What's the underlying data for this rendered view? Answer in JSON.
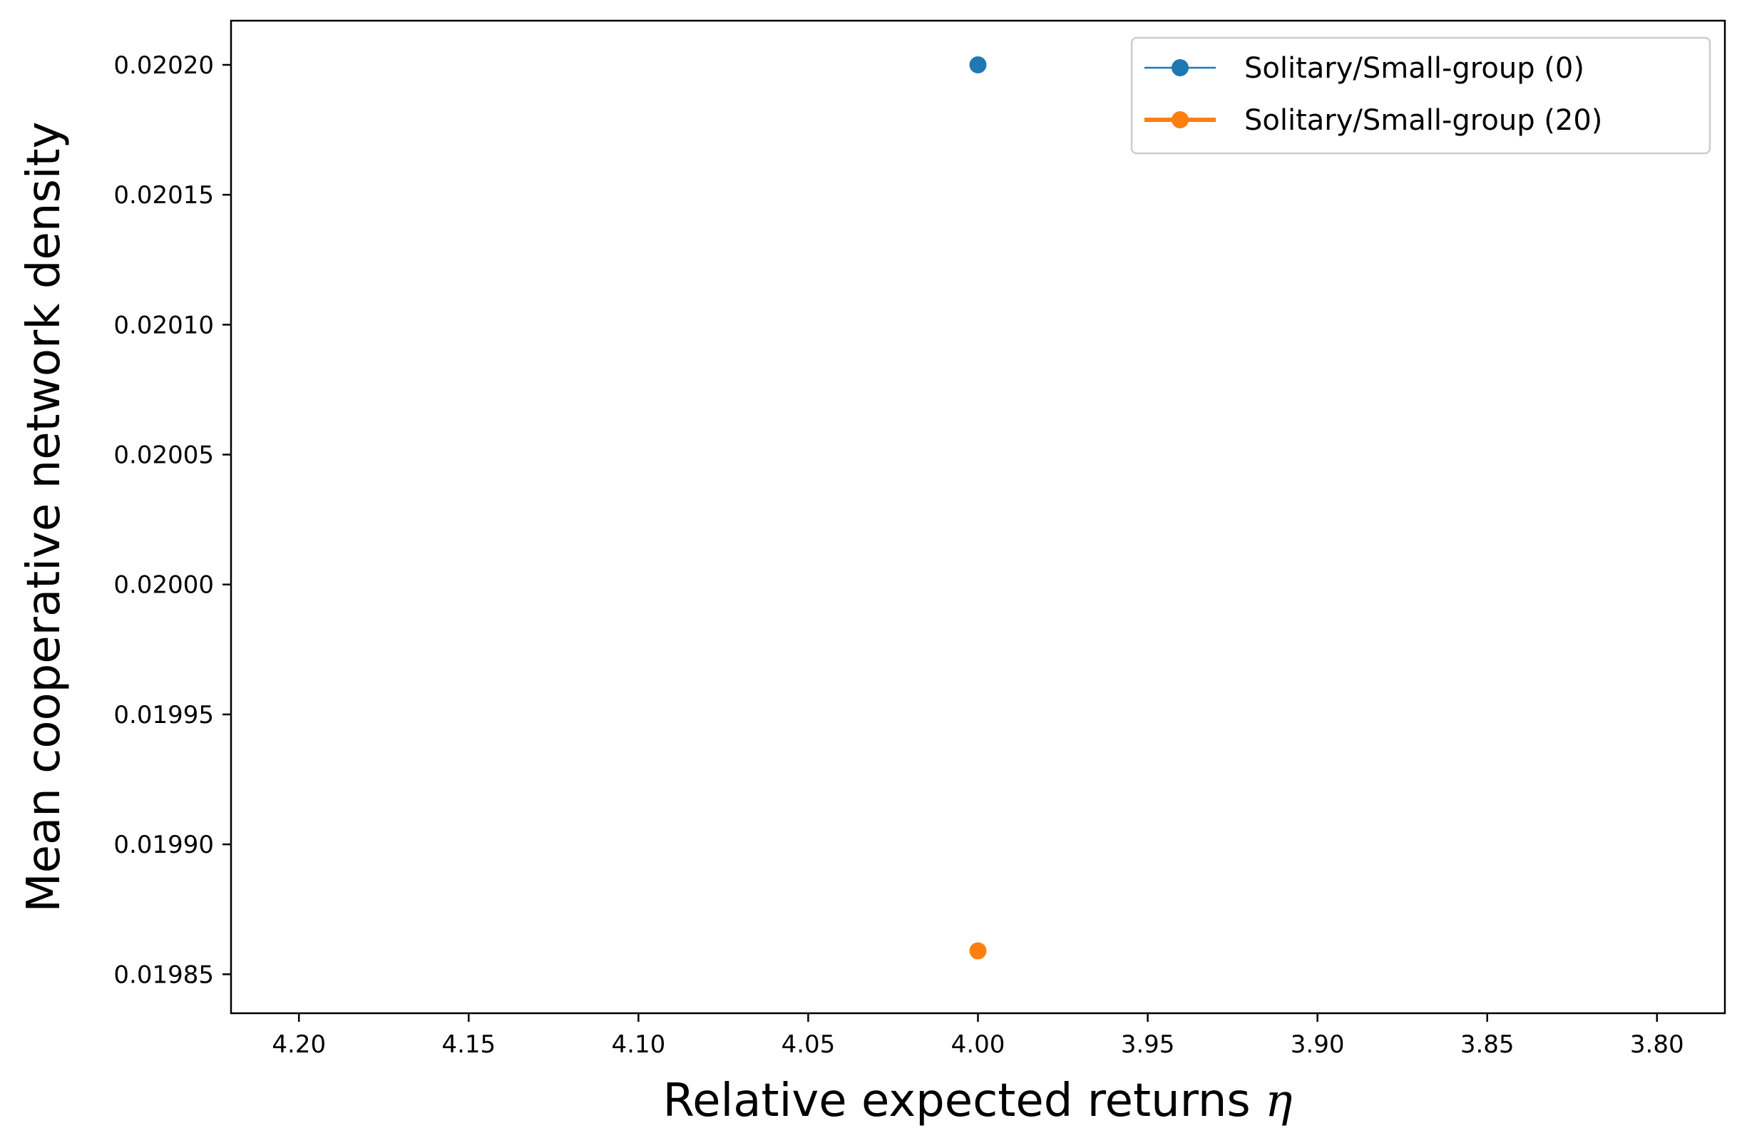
{
  "chart_data": {
    "type": "scatter",
    "title": "",
    "xlabel": "Relative expected returns",
    "xlabel_symbol": "η",
    "ylabel": "Mean cooperative network density",
    "x_axis_inverted": true,
    "xlim": [
      4.22,
      3.78
    ],
    "ylim": [
      0.019835,
      0.020217
    ],
    "x_ticks": [
      4.2,
      4.15,
      4.1,
      4.05,
      4.0,
      3.95,
      3.9,
      3.85,
      3.8
    ],
    "x_tick_labels": [
      "4.20",
      "4.15",
      "4.10",
      "4.05",
      "4.00",
      "3.95",
      "3.90",
      "3.85",
      "3.80"
    ],
    "y_ticks": [
      0.01985,
      0.0199,
      0.01995,
      0.02,
      0.02005,
      0.0201,
      0.02015,
      0.0202
    ],
    "y_tick_labels": [
      "0.01985",
      "0.01990",
      "0.01995",
      "0.02000",
      "0.02005",
      "0.02010",
      "0.02015",
      "0.02020"
    ],
    "grid": false,
    "legend_position": "top-right",
    "series": [
      {
        "name": "Solitary/Small-group (0)",
        "color": "#1f77b4",
        "line_weight": "thin",
        "x": [
          4.0
        ],
        "y": [
          0.0202
        ]
      },
      {
        "name": "Solitary/Small-group (20)",
        "color": "#ff7f0e",
        "line_weight": "thick",
        "x": [
          4.0
        ],
        "y": [
          0.019859
        ]
      }
    ]
  }
}
